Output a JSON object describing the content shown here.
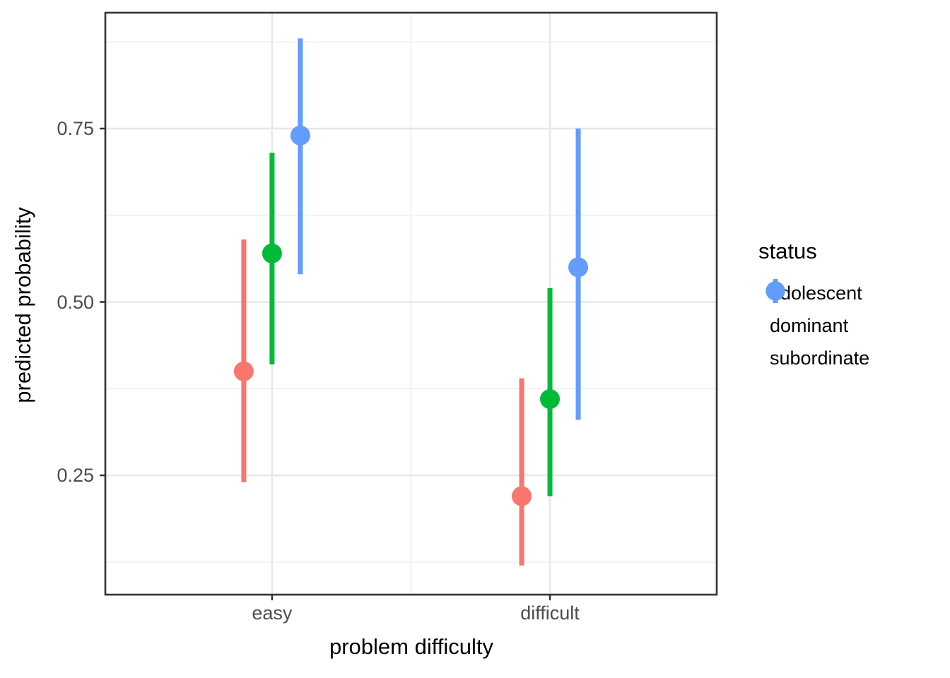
{
  "chart_data": {
    "type": "pointrange",
    "title": "",
    "xlabel": "problem difficulty",
    "ylabel": "predicted probability",
    "categories": [
      "easy",
      "difficult"
    ],
    "y_ticks": [
      {
        "value": 0.25,
        "label": "0.25"
      },
      {
        "value": 0.5,
        "label": "0.50"
      },
      {
        "value": 0.75,
        "label": "0.75"
      }
    ],
    "y_minor": [
      0.125,
      0.375,
      0.625,
      0.875
    ],
    "ylim": [
      0.078,
      0.917
    ],
    "grid": "on",
    "legend": {
      "title": "status",
      "position": "right"
    },
    "series": [
      {
        "name": "adolescent",
        "color": "#F8766D",
        "points": [
          {
            "x": "easy",
            "y": 0.4,
            "lower": 0.24,
            "upper": 0.59
          },
          {
            "x": "difficult",
            "y": 0.22,
            "lower": 0.12,
            "upper": 0.39
          }
        ]
      },
      {
        "name": "dominant",
        "color": "#00BA38",
        "points": [
          {
            "x": "easy",
            "y": 0.57,
            "lower": 0.41,
            "upper": 0.715
          },
          {
            "x": "difficult",
            "y": 0.36,
            "lower": 0.22,
            "upper": 0.52
          }
        ]
      },
      {
        "name": "subordinate",
        "color": "#619CFF",
        "points": [
          {
            "x": "easy",
            "y": 0.74,
            "lower": 0.54,
            "upper": 0.88
          },
          {
            "x": "difficult",
            "y": 0.55,
            "lower": 0.33,
            "upper": 0.75
          }
        ]
      }
    ]
  }
}
